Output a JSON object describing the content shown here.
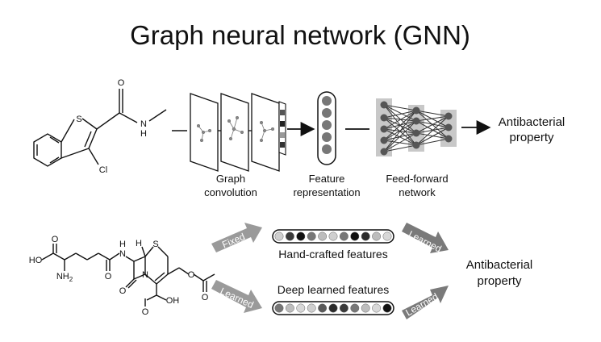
{
  "title": "Graph neural network (GNN)",
  "top_pipeline": {
    "stages": {
      "graph_convolution": "Graph\nconvolution",
      "feature_representation": "Feature\nrepresentation",
      "feed_forward_network": "Feed-forward\nnetwork"
    },
    "output": "Antibacterial\nproperty",
    "molecule_atoms": {
      "s": "S",
      "o": "O",
      "n": "N",
      "h": "H",
      "cl": "Cl"
    }
  },
  "bottom_comparison": {
    "fixed_label": "Fixed",
    "learned_label": "Learned",
    "hand_crafted": "Hand-crafted features",
    "deep_learned": "Deep learned features",
    "output": "Antibacterial\nproperty",
    "hand_crafted_shades": [
      "#cfcfcf",
      "#3a3a3a",
      "#111111",
      "#777777",
      "#bdbdbd",
      "#cfcfcf",
      "#777777",
      "#111111",
      "#2a2a2a",
      "#bdbdbd",
      "#d8d8d8"
    ],
    "deep_learned_shades": [
      "#777777",
      "#bdbdbd",
      "#d8d8d8",
      "#cfcfcf",
      "#5a5a5a",
      "#2a2a2a",
      "#3a3a3a",
      "#777777",
      "#bdbdbd",
      "#d8d8d8",
      "#111111"
    ],
    "molecule_atoms": {
      "ho_left": "HO",
      "o": "O",
      "nh2": "NH",
      "h2_sub": "2",
      "h": "H",
      "n": "N",
      "s": "S",
      "oh": "OH"
    }
  },
  "colors": {
    "arrow_gray": "#9a9a9a",
    "arrow_dark": "#7a7a7a",
    "node_gray": "#8a8a8a",
    "layer_bg": "#c8c8c8"
  }
}
